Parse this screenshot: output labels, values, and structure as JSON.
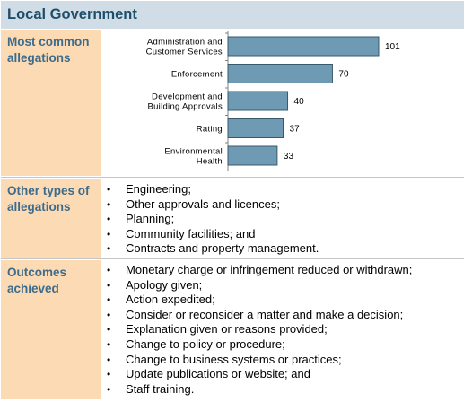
{
  "header": {
    "title": "Local Government"
  },
  "sections": {
    "allegations": {
      "label": "Most common\nallegations"
    },
    "other": {
      "label": "Other types of\nallegations"
    },
    "outcomes": {
      "label": "Outcomes\nachieved"
    }
  },
  "chart_data": {
    "type": "bar",
    "orientation": "horizontal",
    "categories": [
      [
        "Administration and",
        "Customer Services"
      ],
      [
        "Enforcement"
      ],
      [
        "Development and",
        "Building Approvals"
      ],
      [
        "Rating"
      ],
      [
        "Environmental",
        "Health"
      ]
    ],
    "values": [
      101,
      70,
      40,
      37,
      33
    ],
    "xlim": [
      0,
      101
    ],
    "bar_color": "#6f9ab3",
    "bar_border_color": "#38586c",
    "title": "",
    "xlabel": "",
    "ylabel": "",
    "grid": false
  },
  "other_allegations": [
    "Engineering;",
    "Other approvals and licences;",
    "Planning;",
    "Community facilities; and",
    "Contracts and property management."
  ],
  "outcomes": [
    "Monetary charge or infringement reduced or withdrawn;",
    "Apology given;",
    "Action expedited;",
    "Consider or reconsider a matter and make a decision;",
    "Explanation given or reasons provided;",
    "Change to policy or procedure;",
    "Change to business systems or practices;",
    "Update publications or website; and",
    "Staff training."
  ],
  "colors": {
    "header_band": "#d0dde6",
    "header_text": "#1f4e6b",
    "side_band": "#fbdab4",
    "side_text": "#3c6b8c"
  }
}
